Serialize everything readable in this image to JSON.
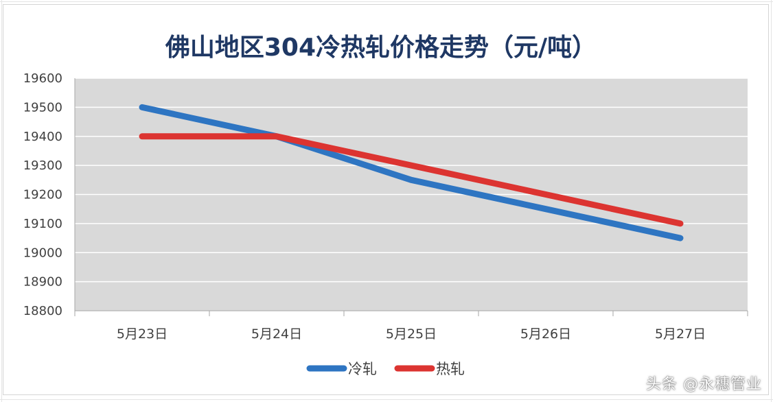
{
  "chart_data": {
    "type": "line",
    "title": "佛山地区304冷热轧价格走势（元/吨）",
    "categories": [
      "5月23日",
      "5月24日",
      "5月25日",
      "5月26日",
      "5月27日"
    ],
    "ylim": [
      18800,
      19600
    ],
    "yticks": [
      19600,
      19500,
      19400,
      19300,
      19200,
      19100,
      19000,
      18900,
      18800
    ],
    "grid": true,
    "legend_position": "bottom",
    "series": [
      {
        "name": "冷轧",
        "color": "#2e75c2",
        "values": [
          19500,
          19400,
          19250,
          19150,
          19050
        ]
      },
      {
        "name": "热轧",
        "color": "#dc3431",
        "values": [
          19400,
          19400,
          19300,
          19200,
          19100
        ]
      }
    ],
    "plot_background": "#d9d9d9",
    "title_color": "#1f3864"
  },
  "watermark": "头条 @永穗管业"
}
